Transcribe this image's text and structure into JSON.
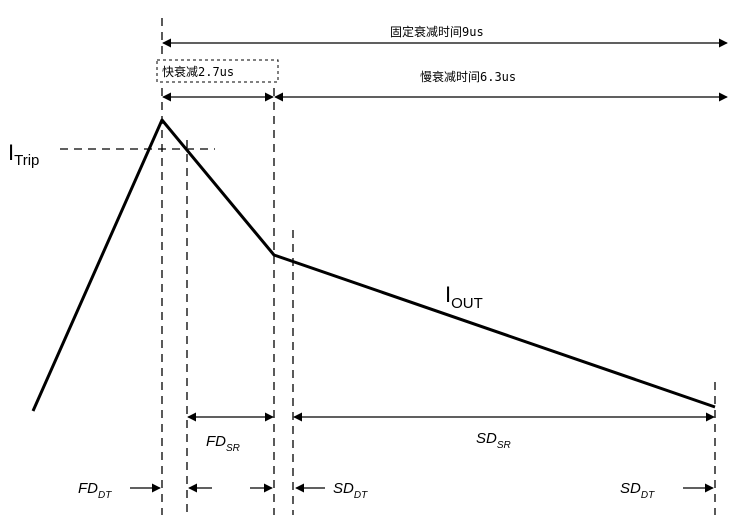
{
  "labels": {
    "fixed_decay": "固定衰减时间9us",
    "fast_decay": "快衰减2.7us",
    "slow_decay": "慢衰减时间6.3us",
    "itrip_main": "I",
    "itrip_sub": "Trip",
    "iout_main": "I",
    "iout_sub": "OUT",
    "fd_sr_main": "FD",
    "fd_sr_sub": "SR",
    "sd_sr_main": "SD",
    "sd_sr_sub": "SR",
    "fd_dt_main": "FD",
    "fd_dt_sub": "DT",
    "sd_dt1_main": "SD",
    "sd_dt1_sub": "DT",
    "sd_dt2_main": "SD",
    "sd_dt2_sub": "DT"
  }
}
